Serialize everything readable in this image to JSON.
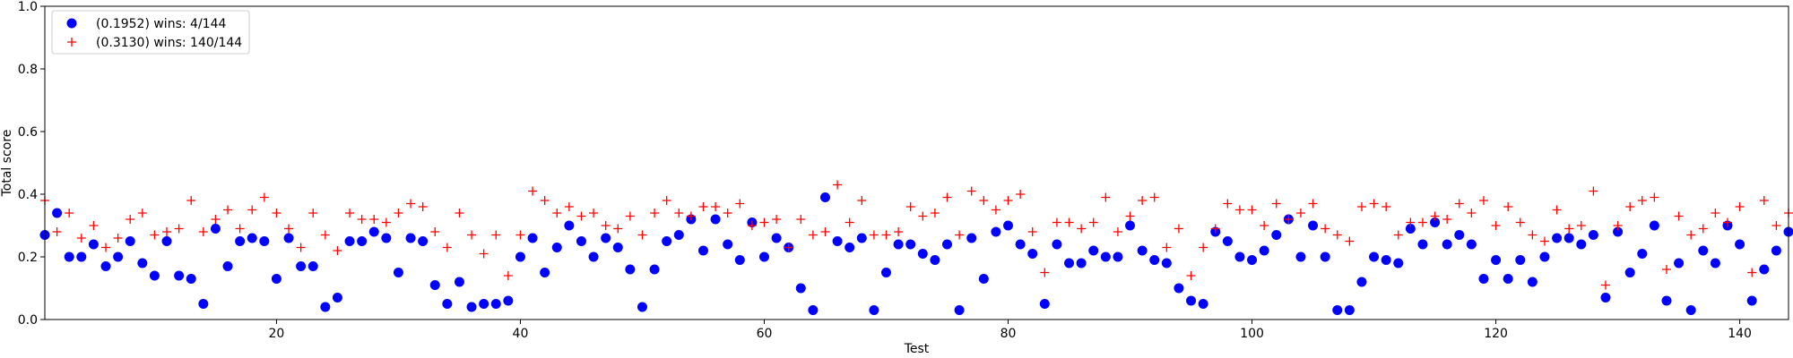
{
  "chart_data": {
    "type": "scatter",
    "title": "",
    "xlabel": "Test",
    "ylabel": "Total score",
    "xlim": [
      1,
      144
    ],
    "ylim": [
      0.0,
      1.0
    ],
    "xticks": [
      20,
      40,
      60,
      80,
      100,
      120,
      140
    ],
    "yticks": [
      0.0,
      0.2,
      0.4,
      0.6,
      0.8,
      1.0
    ],
    "ytick_labels": [
      "0.0",
      "0.2",
      "0.4",
      "0.6",
      "0.8",
      "1.0"
    ],
    "grid": false,
    "legend_position": "top-left",
    "x": [
      1,
      2,
      3,
      4,
      5,
      6,
      7,
      8,
      9,
      10,
      11,
      12,
      13,
      14,
      15,
      16,
      17,
      18,
      19,
      20,
      21,
      22,
      23,
      24,
      25,
      26,
      27,
      28,
      29,
      30,
      31,
      32,
      33,
      34,
      35,
      36,
      37,
      38,
      39,
      40,
      41,
      42,
      43,
      44,
      45,
      46,
      47,
      48,
      49,
      50,
      51,
      52,
      53,
      54,
      55,
      56,
      57,
      58,
      59,
      60,
      61,
      62,
      63,
      64,
      65,
      66,
      67,
      68,
      69,
      70,
      71,
      72,
      73,
      74,
      75,
      76,
      77,
      78,
      79,
      80,
      81,
      82,
      83,
      84,
      85,
      86,
      87,
      88,
      89,
      90,
      91,
      92,
      93,
      94,
      95,
      96,
      97,
      98,
      99,
      100,
      101,
      102,
      103,
      104,
      105,
      106,
      107,
      108,
      109,
      110,
      111,
      112,
      113,
      114,
      115,
      116,
      117,
      118,
      119,
      120,
      121,
      122,
      123,
      124,
      125,
      126,
      127,
      128,
      129,
      130,
      131,
      132,
      133,
      134,
      135,
      136,
      137,
      138,
      139,
      140,
      141,
      142,
      143,
      144
    ],
    "series": [
      {
        "name": "(0.1952) wins: 4/144",
        "marker": "circle",
        "color": "#0000ff",
        "values": [
          0.27,
          0.34,
          0.2,
          0.2,
          0.24,
          0.17,
          0.2,
          0.25,
          0.18,
          0.14,
          0.25,
          0.14,
          0.13,
          0.05,
          0.29,
          0.17,
          0.25,
          0.26,
          0.25,
          0.13,
          0.26,
          0.17,
          0.17,
          0.04,
          0.07,
          0.25,
          0.25,
          0.28,
          0.26,
          0.15,
          0.26,
          0.25,
          0.11,
          0.05,
          0.12,
          0.04,
          0.05,
          0.05,
          0.06,
          0.2,
          0.26,
          0.15,
          0.23,
          0.3,
          0.25,
          0.2,
          0.26,
          0.23,
          0.16,
          0.04,
          0.16,
          0.25,
          0.27,
          0.32,
          0.22,
          0.32,
          0.24,
          0.19,
          0.31,
          0.2,
          0.26,
          0.23,
          0.1,
          0.03,
          0.39,
          0.25,
          0.23,
          0.26,
          0.03,
          0.15,
          0.24,
          0.24,
          0.21,
          0.19,
          0.24,
          0.03,
          0.26,
          0.13,
          0.28,
          0.3,
          0.24,
          0.21,
          0.05,
          0.24,
          0.18,
          0.18,
          0.22,
          0.2,
          0.2,
          0.3,
          0.22,
          0.19,
          0.18,
          0.1,
          0.06,
          0.05,
          0.28,
          0.25,
          0.2,
          0.19,
          0.22,
          0.27,
          0.32,
          0.2,
          0.3,
          0.2,
          0.03,
          0.03,
          0.12,
          0.2,
          0.19,
          0.18,
          0.29,
          0.24,
          0.31,
          0.24,
          0.27,
          0.24,
          0.13,
          0.19,
          0.13,
          0.19,
          0.12,
          0.2,
          0.26,
          0.26,
          0.24,
          0.27,
          0.07,
          0.28,
          0.15,
          0.21,
          0.3,
          0.06,
          0.18,
          0.03,
          0.22,
          0.18,
          0.3,
          0.24,
          0.06,
          0.16,
          0.22,
          0.28
        ]
      },
      {
        "name": "(0.3130) wins: 140/144",
        "marker": "plus",
        "color": "#ff0000",
        "values": [
          0.38,
          0.28,
          0.34,
          0.26,
          0.3,
          0.23,
          0.26,
          0.32,
          0.34,
          0.27,
          0.28,
          0.29,
          0.38,
          0.28,
          0.32,
          0.35,
          0.29,
          0.35,
          0.39,
          0.34,
          0.29,
          0.23,
          0.34,
          0.27,
          0.22,
          0.34,
          0.32,
          0.32,
          0.31,
          0.34,
          0.37,
          0.36,
          0.28,
          0.23,
          0.34,
          0.27,
          0.21,
          0.27,
          0.14,
          0.27,
          0.41,
          0.38,
          0.34,
          0.36,
          0.33,
          0.34,
          0.3,
          0.29,
          0.33,
          0.27,
          0.34,
          0.38,
          0.34,
          0.33,
          0.36,
          0.36,
          0.34,
          0.37,
          0.3,
          0.31,
          0.32,
          0.23,
          0.32,
          0.27,
          0.28,
          0.43,
          0.31,
          0.38,
          0.27,
          0.27,
          0.28,
          0.36,
          0.33,
          0.34,
          0.39,
          0.27,
          0.41,
          0.38,
          0.35,
          0.38,
          0.4,
          0.28,
          0.15,
          0.31,
          0.31,
          0.29,
          0.31,
          0.39,
          0.28,
          0.33,
          0.38,
          0.39,
          0.23,
          0.29,
          0.14,
          0.23,
          0.29,
          0.37,
          0.35,
          0.35,
          0.3,
          0.37,
          0.32,
          0.34,
          0.37,
          0.29,
          0.27,
          0.25,
          0.36,
          0.37,
          0.36,
          0.27,
          0.31,
          0.31,
          0.33,
          0.32,
          0.37,
          0.34,
          0.38,
          0.3,
          0.36,
          0.31,
          0.27,
          0.25,
          0.35,
          0.29,
          0.3,
          0.41,
          0.11,
          0.3,
          0.36,
          0.38,
          0.39,
          0.16,
          0.33,
          0.27,
          0.29,
          0.34,
          0.31,
          0.36,
          0.15,
          0.38,
          0.3,
          0.34
        ]
      }
    ]
  }
}
